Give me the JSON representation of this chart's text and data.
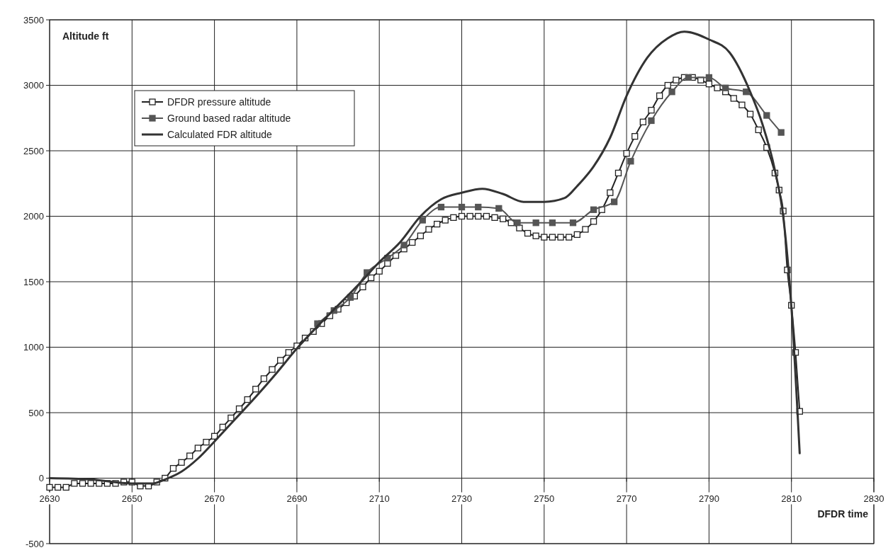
{
  "chart_data": {
    "type": "line",
    "ylabel": "Altitude ft",
    "xlabel": "DFDR time",
    "xlim": [
      2630,
      2830
    ],
    "xticks": [
      2630,
      2650,
      2670,
      2690,
      2710,
      2730,
      2750,
      2770,
      2790,
      2810,
      2830
    ],
    "ylim": [
      -500,
      3500
    ],
    "yticks": [
      -500,
      0,
      500,
      1000,
      1500,
      2000,
      2500,
      3000,
      3500
    ],
    "grid": true,
    "legend": "top left",
    "line_style": "solid",
    "series": [
      {
        "name": "DFDR pressure altitude",
        "color": "#222222",
        "marker": "square",
        "x": [
          2630,
          2632,
          2634,
          2636,
          2638,
          2640,
          2642,
          2644,
          2646,
          2648,
          2650,
          2652,
          2654,
          2656,
          2658,
          2660,
          2662,
          2664,
          2666,
          2668,
          2670,
          2672,
          2674,
          2676,
          2678,
          2680,
          2682,
          2684,
          2686,
          2688,
          2690,
          2692,
          2694,
          2696,
          2698,
          2700,
          2702,
          2704,
          2706,
          2708,
          2710,
          2712,
          2714,
          2716,
          2718,
          2720,
          2722,
          2724,
          2726,
          2728,
          2730,
          2732,
          2734,
          2736,
          2738,
          2740,
          2742,
          2744,
          2746,
          2748,
          2750,
          2752,
          2754,
          2756,
          2758,
          2760,
          2762,
          2764,
          2766,
          2768,
          2770,
          2772,
          2774,
          2776,
          2778,
          2780,
          2782,
          2784,
          2786,
          2788,
          2790,
          2792,
          2794,
          2796,
          2798,
          2800,
          2802,
          2804,
          2806,
          2807,
          2808,
          2809,
          2810,
          2811,
          2812
        ],
        "values": [
          -70,
          -70,
          -70,
          -40,
          -40,
          -40,
          -40,
          -40,
          -40,
          -30,
          -30,
          -60,
          -60,
          -30,
          0,
          75,
          120,
          170,
          230,
          275,
          320,
          390,
          460,
          530,
          600,
          680,
          760,
          830,
          900,
          960,
          1010,
          1070,
          1120,
          1180,
          1240,
          1290,
          1340,
          1390,
          1460,
          1530,
          1580,
          1640,
          1700,
          1750,
          1800,
          1850,
          1900,
          1940,
          1970,
          1990,
          2000,
          2000,
          2000,
          2000,
          1990,
          1980,
          1950,
          1910,
          1870,
          1850,
          1840,
          1840,
          1840,
          1840,
          1860,
          1900,
          1960,
          2050,
          2180,
          2330,
          2480,
          2610,
          2720,
          2810,
          2920,
          3000,
          3040,
          3060,
          3060,
          3040,
          3010,
          2980,
          2950,
          2900,
          2850,
          2780,
          2660,
          2525,
          2330,
          2200,
          2040,
          1590,
          1320,
          960,
          510
        ]
      },
      {
        "name": "Ground based radar altitude",
        "color": "#555555",
        "marker": "square",
        "x": [
          2695,
          2699,
          2703,
          2707,
          2712,
          2716,
          2720.5,
          2725,
          2730,
          2734,
          2739,
          2743.5,
          2748,
          2752,
          2757,
          2762,
          2767,
          2771,
          2776,
          2781,
          2785,
          2790,
          2794,
          2799,
          2804,
          2807.5
        ],
        "values": [
          1180,
          1280,
          1380,
          1570,
          1680,
          1780,
          1970,
          2070,
          2070,
          2070,
          2060,
          1950,
          1950,
          1950,
          1950,
          2050,
          2110,
          2420,
          2730,
          2950,
          3060,
          3060,
          2980,
          2950,
          2770,
          2640
        ]
      },
      {
        "name": "Calculated FDR altitude",
        "color": "#333333",
        "marker": "none",
        "x": [
          2630,
          2640,
          2650,
          2655,
          2658,
          2662,
          2666,
          2670,
          2675,
          2680,
          2685,
          2690,
          2695,
          2700,
          2705,
          2710,
          2715,
          2720,
          2725,
          2730,
          2735,
          2740,
          2745,
          2750,
          2755,
          2758,
          2762,
          2766,
          2770,
          2775,
          2780,
          2784,
          2790,
          2795,
          2800,
          2803,
          2806,
          2808,
          2810,
          2812
        ],
        "values": [
          0,
          -10,
          -40,
          -40,
          -10,
          50,
          150,
          280,
          450,
          620,
          800,
          990,
          1160,
          1320,
          1480,
          1650,
          1800,
          2000,
          2130,
          2180,
          2210,
          2170,
          2110,
          2110,
          2140,
          2230,
          2380,
          2600,
          2920,
          3210,
          3360,
          3410,
          3350,
          3250,
          2950,
          2700,
          2350,
          2000,
          1300,
          190
        ]
      }
    ]
  }
}
